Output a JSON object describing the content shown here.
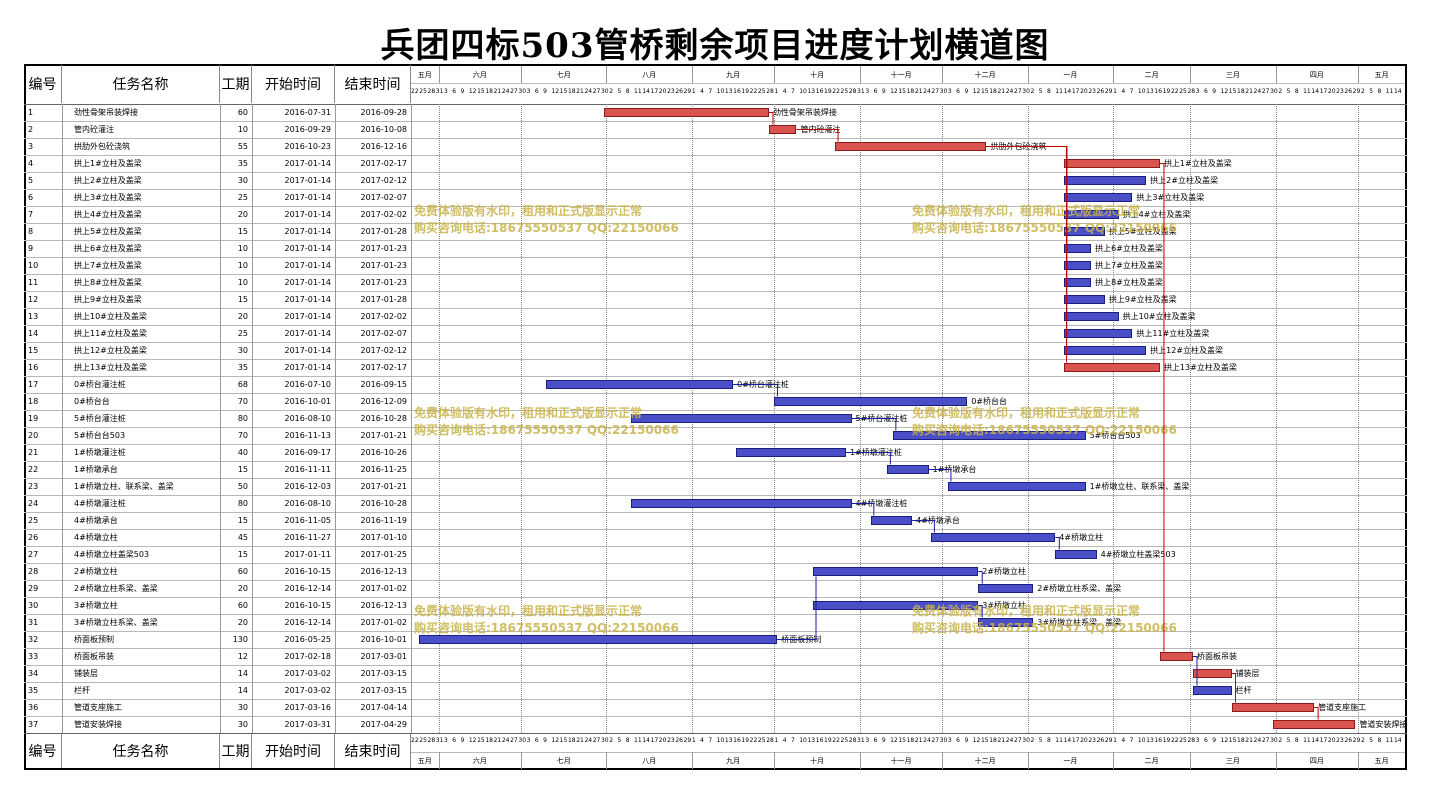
{
  "title": "兵团四标503管桥剩余项目进度计划横道图",
  "headers": {
    "id": "编号",
    "name": "任务名称",
    "dur": "工期",
    "start": "开始时间",
    "end": "结束时间"
  },
  "months": [
    "五月",
    "六月",
    "七月",
    "八月",
    "九月",
    "十月",
    "十一月",
    "十二月",
    "一月",
    "二月",
    "三月",
    "四月",
    "五月"
  ],
  "watermarks": [
    "免费体验版有水印，租用和正式版显示正常",
    "购买咨询电话:18675550537 QQ:22150066"
  ],
  "colors": {
    "critical": "#d9534f",
    "normal": "#4a4fc7",
    "link_critical": "#c00000",
    "link_normal": "#1a1fa0"
  },
  "chart_data": {
    "type": "gantt",
    "title": "兵团四标503管桥剩余项目进度计划横道图",
    "x_range": [
      "2016-05-22",
      "2017-05-18"
    ],
    "tasks": [
      {
        "id": "1",
        "name": "劲性骨架吊装焊接",
        "dur": "60",
        "start": "2016-07-31",
        "end": "2016-09-28",
        "critical": true
      },
      {
        "id": "2",
        "name": "管内砼灌注",
        "dur": "10",
        "start": "2016-09-29",
        "end": "2016-10-08",
        "critical": true
      },
      {
        "id": "3",
        "name": "拱肋外包砼浇筑",
        "dur": "55",
        "start": "2016-10-23",
        "end": "2016-12-16",
        "critical": true
      },
      {
        "id": "4",
        "name": "拱上1#立柱及盖梁",
        "dur": "35",
        "start": "2017-01-14",
        "end": "2017-02-17",
        "critical": true
      },
      {
        "id": "5",
        "name": "拱上2#立柱及盖梁",
        "dur": "30",
        "start": "2017-01-14",
        "end": "2017-02-12",
        "critical": false
      },
      {
        "id": "6",
        "name": "拱上3#立柱及盖梁",
        "dur": "25",
        "start": "2017-01-14",
        "end": "2017-02-07",
        "critical": false
      },
      {
        "id": "7",
        "name": "拱上4#立柱及盖梁",
        "dur": "20",
        "start": "2017-01-14",
        "end": "2017-02-02",
        "critical": false
      },
      {
        "id": "8",
        "name": "拱上5#立柱及盖梁",
        "dur": "15",
        "start": "2017-01-14",
        "end": "2017-01-28",
        "critical": false
      },
      {
        "id": "9",
        "name": "拱上6#立柱及盖梁",
        "dur": "10",
        "start": "2017-01-14",
        "end": "2017-01-23",
        "critical": false
      },
      {
        "id": "10",
        "name": "拱上7#立柱及盖梁",
        "dur": "10",
        "start": "2017-01-14",
        "end": "2017-01-23",
        "critical": false
      },
      {
        "id": "11",
        "name": "拱上8#立柱及盖梁",
        "dur": "10",
        "start": "2017-01-14",
        "end": "2017-01-23",
        "critical": false
      },
      {
        "id": "12",
        "name": "拱上9#立柱及盖梁",
        "dur": "15",
        "start": "2017-01-14",
        "end": "2017-01-28",
        "critical": false
      },
      {
        "id": "13",
        "name": "拱上10#立柱及盖梁",
        "dur": "20",
        "start": "2017-01-14",
        "end": "2017-02-02",
        "critical": false
      },
      {
        "id": "14",
        "name": "拱上11#立柱及盖梁",
        "dur": "25",
        "start": "2017-01-14",
        "end": "2017-02-07",
        "critical": false
      },
      {
        "id": "15",
        "name": "拱上12#立柱及盖梁",
        "dur": "30",
        "start": "2017-01-14",
        "end": "2017-02-12",
        "critical": false
      },
      {
        "id": "16",
        "name": "拱上13#立柱及盖梁",
        "dur": "35",
        "start": "2017-01-14",
        "end": "2017-02-17",
        "critical": true
      },
      {
        "id": "17",
        "name": "0#桥台灌注桩",
        "dur": "68",
        "start": "2016-07-10",
        "end": "2016-09-15",
        "critical": false
      },
      {
        "id": "18",
        "name": "0#桥台台",
        "dur": "70",
        "start": "2016-10-01",
        "end": "2016-12-09",
        "critical": false
      },
      {
        "id": "19",
        "name": "5#桥台灌注桩",
        "dur": "80",
        "start": "2016-08-10",
        "end": "2016-10-28",
        "critical": false
      },
      {
        "id": "20",
        "name": "5#桥台台503",
        "dur": "70",
        "start": "2016-11-13",
        "end": "2017-01-21",
        "critical": false
      },
      {
        "id": "21",
        "name": "1#桥墩灌注桩",
        "dur": "40",
        "start": "2016-09-17",
        "end": "2016-10-26",
        "critical": false
      },
      {
        "id": "22",
        "name": "1#桥墩承台",
        "dur": "15",
        "start": "2016-11-11",
        "end": "2016-11-25",
        "critical": false
      },
      {
        "id": "23",
        "name": "1#桥墩立柱、联系梁、盖梁",
        "dur": "50",
        "start": "2016-12-03",
        "end": "2017-01-21",
        "critical": false
      },
      {
        "id": "24",
        "name": "4#桥墩灌注桩",
        "dur": "80",
        "start": "2016-08-10",
        "end": "2016-10-28",
        "critical": false
      },
      {
        "id": "25",
        "name": "4#桥墩承台",
        "dur": "15",
        "start": "2016-11-05",
        "end": "2016-11-19",
        "critical": false
      },
      {
        "id": "26",
        "name": "4#桥墩立柱",
        "dur": "45",
        "start": "2016-11-27",
        "end": "2017-01-10",
        "critical": false
      },
      {
        "id": "27",
        "name": "4#桥墩立柱盖梁503",
        "dur": "15",
        "start": "2017-01-11",
        "end": "2017-01-25",
        "critical": false
      },
      {
        "id": "28",
        "name": "2#桥墩立柱",
        "dur": "60",
        "start": "2016-10-15",
        "end": "2016-12-13",
        "critical": false
      },
      {
        "id": "29",
        "name": "2#桥墩立柱系梁、盖梁",
        "dur": "20",
        "start": "2016-12-14",
        "end": "2017-01-02",
        "critical": false
      },
      {
        "id": "30",
        "name": "3#桥墩立柱",
        "dur": "60",
        "start": "2016-10-15",
        "end": "2016-12-13",
        "critical": false
      },
      {
        "id": "31",
        "name": "3#桥墩立柱系梁、盖梁",
        "dur": "20",
        "start": "2016-12-14",
        "end": "2017-01-02",
        "critical": false
      },
      {
        "id": "32",
        "name": "桥面板预制",
        "dur": "130",
        "start": "2016-05-25",
        "end": "2016-10-01",
        "critical": false
      },
      {
        "id": "33",
        "name": "桥面板吊装",
        "dur": "12",
        "start": "2017-02-18",
        "end": "2017-03-01",
        "critical": true
      },
      {
        "id": "34",
        "name": "铺装层",
        "dur": "14",
        "start": "2017-03-02",
        "end": "2017-03-15",
        "critical": true
      },
      {
        "id": "35",
        "name": "栏杆",
        "dur": "14",
        "start": "2017-03-02",
        "end": "2017-03-15",
        "critical": false
      },
      {
        "id": "36",
        "name": "管道支座施工",
        "dur": "30",
        "start": "2017-03-16",
        "end": "2017-04-14",
        "critical": true
      },
      {
        "id": "37",
        "name": "管道安装焊接",
        "dur": "30",
        "start": "2017-03-31",
        "end": "2017-04-29",
        "critical": true
      }
    ]
  }
}
